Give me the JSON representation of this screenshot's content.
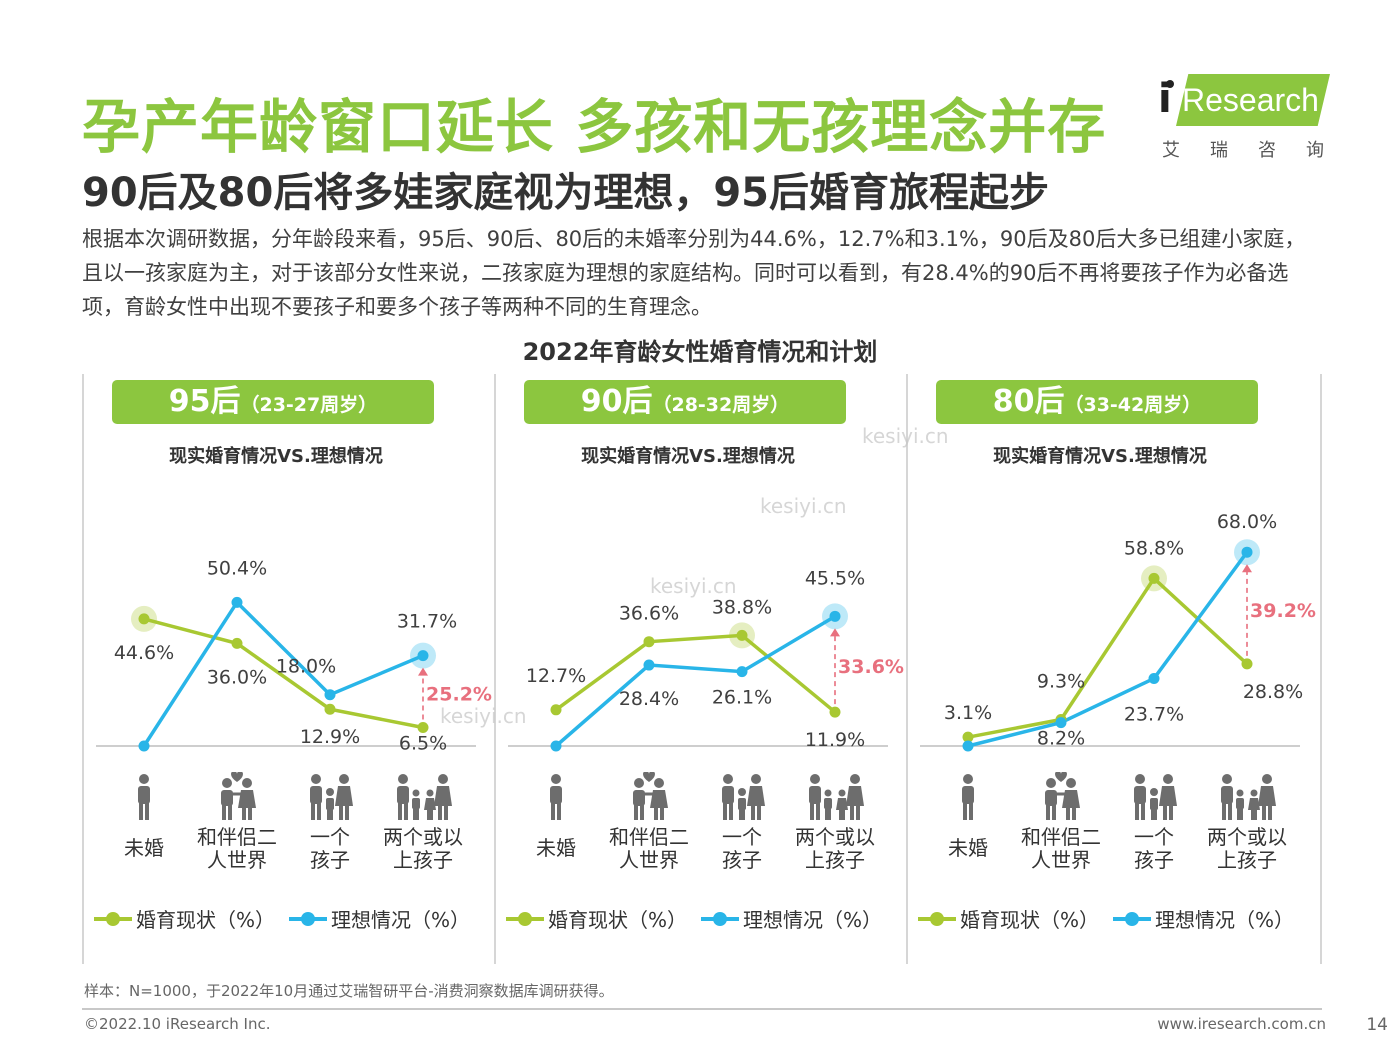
{
  "title": "孕产年龄窗口延长 多孩和无孩理念并存",
  "subtitle": "90后及80后将多娃家庭视为理想，95后婚育旅程起步",
  "intro": "根据本次调研数据，分年龄段来看，95后、90后、80后的未婚率分别为44.6%，12.7%和3.1%，90后及80后大多已组建小家庭，且以一孩家庭为主，对于该部分女性来说，二孩家庭为理想的家庭结构。同时可以看到，有28.4%的90后不再将要孩子作为必备选项，育龄女性中出现不要孩子和要多个孩子等两种不同的生育理念。",
  "logo": {
    "i": "i",
    "text": "Research",
    "cn": "艾瑞咨询"
  },
  "watermark": "kesiyi.cn",
  "chart_title": "2022年育龄女性婚育情况和计划",
  "colors": {
    "green": "#a8c832",
    "blue": "#29b5e8",
    "gap": "#e8707e",
    "pill": "#8cc63f"
  },
  "icons": [
    "single-person-icon",
    "couple-icon",
    "family-one-child-icon",
    "family-two-children-icon"
  ],
  "chart_data": [
    {
      "type": "line",
      "generation": "95后",
      "age": "（23-27周岁）",
      "title": "现实婚育情况VS.理想情况",
      "categories": [
        "未婚",
        "和伴侣二\n人世界",
        "一个\n孩子",
        "两个或以\n上孩子"
      ],
      "series": [
        {
          "name": "婚育现状（%）",
          "values": [
            44.6,
            36.0,
            12.9,
            6.5
          ]
        },
        {
          "name": "理想情况（%）",
          "values": [
            0,
            50.4,
            18.0,
            31.7
          ]
        }
      ],
      "value_labels": {
        "current": [
          "44.6%",
          "36.0%",
          "12.9%",
          "6.5%"
        ],
        "ideal": [
          "",
          "50.4%",
          "18.0%",
          "31.7%"
        ]
      },
      "highlight_current_index": 0,
      "highlight_ideal_index": 3,
      "gap": {
        "index": 3,
        "label": "25.2%"
      },
      "ylim": [
        0,
        70
      ]
    },
    {
      "type": "line",
      "generation": "90后",
      "age": "（28-32周岁）",
      "title": "现实婚育情况VS.理想情况",
      "categories": [
        "未婚",
        "和伴侣二\n人世界",
        "一个\n孩子",
        "两个或以\n上孩子"
      ],
      "series": [
        {
          "name": "婚育现状（%）",
          "values": [
            12.7,
            36.6,
            38.8,
            11.9
          ]
        },
        {
          "name": "理想情况（%）",
          "values": [
            0,
            28.4,
            26.1,
            45.5
          ]
        }
      ],
      "value_labels": {
        "current": [
          "12.7%",
          "36.6%",
          "38.8%",
          "11.9%"
        ],
        "ideal": [
          "",
          "28.4%",
          "26.1%",
          "45.5%"
        ]
      },
      "highlight_current_index": 2,
      "highlight_ideal_index": 3,
      "gap": {
        "index": 3,
        "label": "33.6%"
      },
      "ylim": [
        0,
        70
      ]
    },
    {
      "type": "line",
      "generation": "80后",
      "age": "（33-42周岁）",
      "title": "现实婚育情况VS.理想情况",
      "categories": [
        "未婚",
        "和伴侣二\n人世界",
        "一个\n孩子",
        "两个或以\n上孩子"
      ],
      "series": [
        {
          "name": "婚育现状（%）",
          "values": [
            3.1,
            9.3,
            58.8,
            28.8
          ]
        },
        {
          "name": "理想情况（%）",
          "values": [
            0,
            8.2,
            23.7,
            68.0
          ]
        }
      ],
      "value_labels": {
        "current": [
          "3.1%",
          "9.3%",
          "58.8%",
          "28.8%"
        ],
        "ideal": [
          "",
          "8.2%",
          "23.7%",
          "68.0%"
        ]
      },
      "highlight_current_index": 2,
      "highlight_ideal_index": 3,
      "gap": {
        "index": 3,
        "label": "39.2%"
      },
      "ylim": [
        0,
        70
      ]
    }
  ],
  "note": "样本：N=1000，于2022年10月通过艾瑞智研平台-消费洞察数据库调研获得。",
  "copyright": "©2022.10 iResearch Inc.",
  "site": "www.iresearch.com.cn",
  "page_number": "14"
}
